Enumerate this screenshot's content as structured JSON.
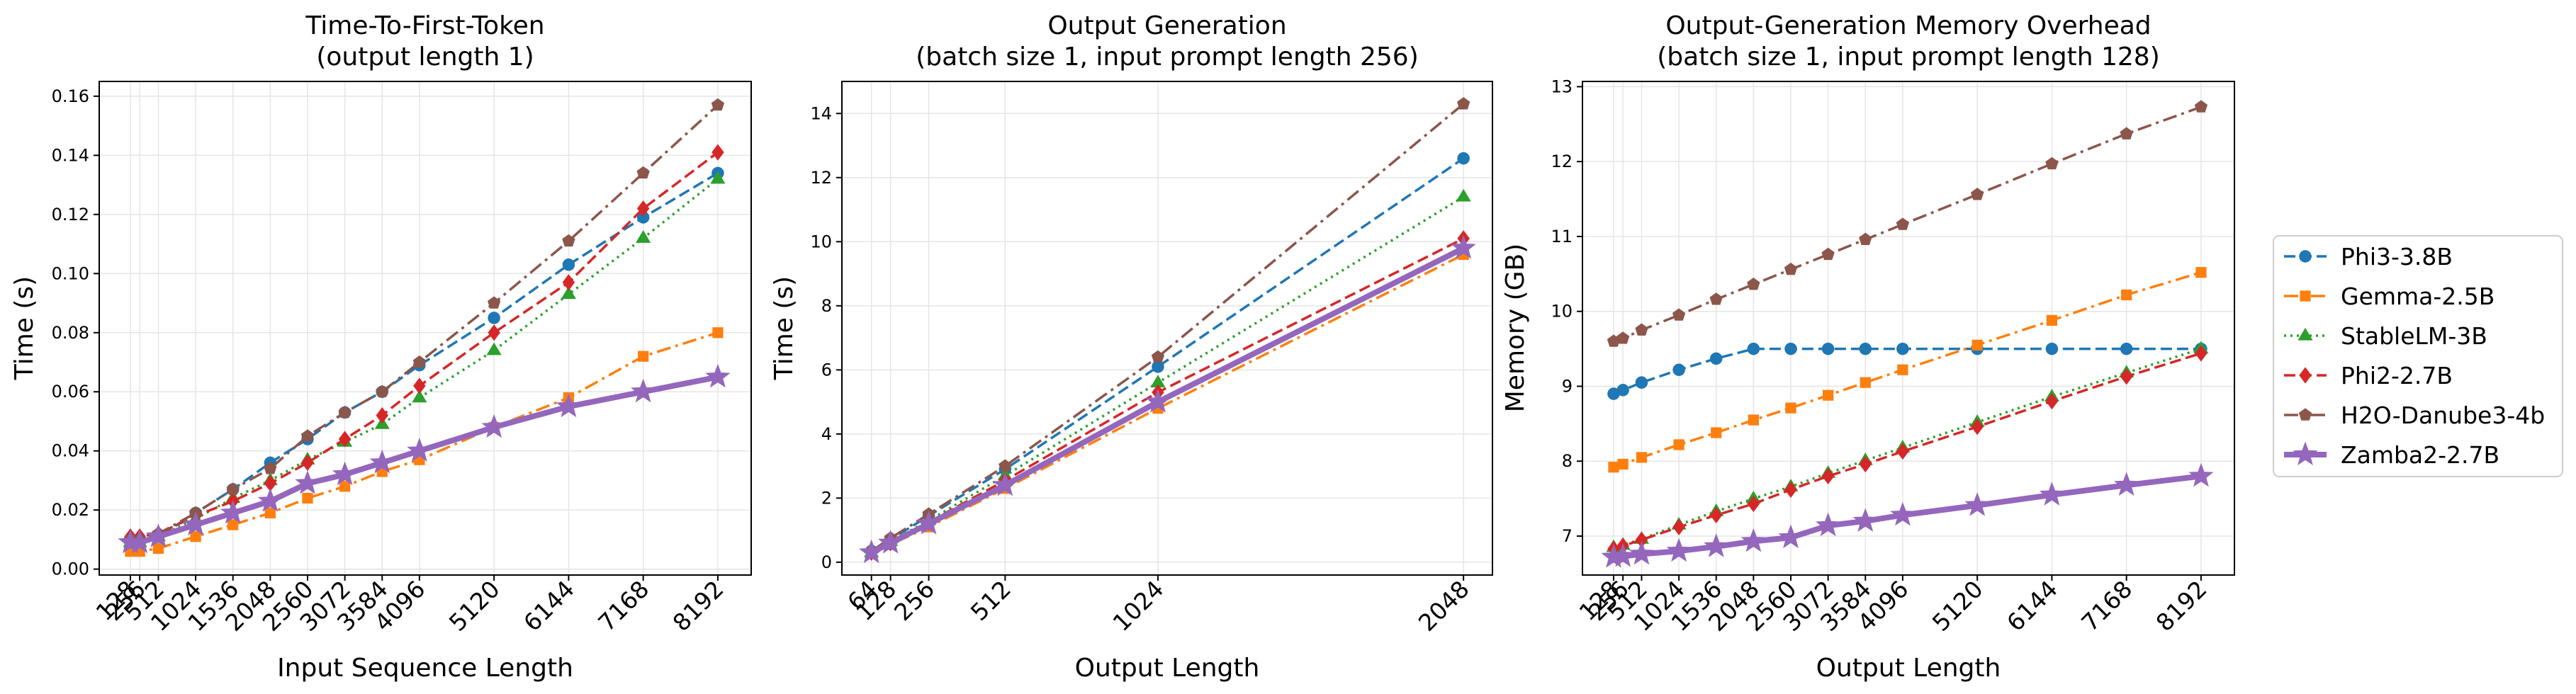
{
  "series_styles": {
    "Phi3-3.8B": {
      "color": "#1f77b4",
      "dash": "16,7",
      "marker": "circle",
      "width": 3.5
    },
    "Gemma-2.5B": {
      "color": "#ff7f0e",
      "dash": "20,7,4,7",
      "marker": "square",
      "width": 3.5
    },
    "StableLM-3B": {
      "color": "#2ca02c",
      "dash": "3,6",
      "marker": "triangle",
      "width": 3.5
    },
    "Phi2-2.7B": {
      "color": "#d62728",
      "dash": "16,7",
      "marker": "diamond",
      "width": 3.5
    },
    "H2O-Danube3-4b": {
      "color": "#8c564b",
      "dash": "20,7,4,7",
      "marker": "pentagon",
      "width": 3.5
    },
    "Zamba2-2.7B": {
      "color": "#9467bd",
      "dash": "",
      "marker": "star",
      "width": 8
    }
  },
  "legend": [
    "Phi3-3.8B",
    "Gemma-2.5B",
    "StableLM-3B",
    "Phi2-2.7B",
    "H2O-Danube3-4b",
    "Zamba2-2.7B"
  ],
  "chart_data": [
    {
      "type": "line",
      "title": [
        "Time-To-First-Token",
        "(output length 1)"
      ],
      "xlabel": "Input Sequence Length",
      "ylabel": "Time (s)",
      "xlim": [
        -300,
        8650
      ],
      "ylim": [
        -0.002,
        0.165
      ],
      "x": [
        128,
        256,
        512,
        1024,
        1536,
        2048,
        2560,
        3072,
        3584,
        4096,
        5120,
        6144,
        7168,
        8192
      ],
      "xticks": [
        128,
        256,
        512,
        1024,
        1536,
        2048,
        2560,
        3072,
        3584,
        4096,
        5120,
        6144,
        7168,
        8192
      ],
      "yticks": [
        0.0,
        0.02,
        0.04,
        0.06,
        0.08,
        0.1,
        0.12,
        0.14,
        0.16
      ],
      "ytick_labels": [
        "0.00",
        "0.02",
        "0.04",
        "0.06",
        "0.08",
        "0.10",
        "0.12",
        "0.14",
        "0.16"
      ],
      "series": [
        {
          "name": "Phi3-3.8B",
          "values": [
            0.009,
            0.009,
            0.011,
            0.019,
            0.027,
            0.036,
            0.044,
            0.053,
            0.06,
            0.069,
            0.085,
            0.103,
            0.119,
            0.134
          ]
        },
        {
          "name": "Gemma-2.5B",
          "values": [
            0.006,
            0.006,
            0.007,
            0.011,
            0.015,
            0.019,
            0.024,
            0.028,
            0.033,
            0.037,
            0.048,
            0.058,
            0.072,
            0.08
          ]
        },
        {
          "name": "StableLM-3B",
          "values": [
            0.009,
            0.009,
            0.011,
            0.017,
            0.024,
            0.03,
            0.037,
            0.043,
            0.049,
            0.058,
            0.074,
            0.093,
            0.112,
            0.132
          ]
        },
        {
          "name": "Phi2-2.7B",
          "values": [
            0.011,
            0.011,
            0.012,
            0.018,
            0.023,
            0.029,
            0.036,
            0.044,
            0.052,
            0.062,
            0.08,
            0.097,
            0.122,
            0.141
          ]
        },
        {
          "name": "H2O-Danube3-4b",
          "values": [
            0.01,
            0.01,
            0.012,
            0.019,
            0.027,
            0.034,
            0.045,
            0.053,
            0.06,
            0.07,
            0.09,
            0.111,
            0.134,
            0.157
          ]
        },
        {
          "name": "Zamba2-2.7B",
          "values": [
            0.009,
            0.009,
            0.011,
            0.015,
            0.019,
            0.023,
            0.029,
            0.032,
            0.036,
            0.04,
            0.048,
            0.055,
            0.06,
            0.065
          ]
        }
      ]
    },
    {
      "type": "line",
      "title": [
        "Output Generation",
        "(batch size 1, input prompt length 256)"
      ],
      "xlabel": "Output Length",
      "ylabel": "Time (s)",
      "xlim": [
        -35,
        2145
      ],
      "ylim": [
        -0.4,
        15.0
      ],
      "x": [
        64,
        128,
        256,
        512,
        1024,
        2048
      ],
      "xticks": [
        64,
        128,
        256,
        512,
        1024,
        2048
      ],
      "yticks": [
        0,
        2,
        4,
        6,
        8,
        10,
        12,
        14
      ],
      "ytick_labels": [
        "0",
        "2",
        "4",
        "6",
        "8",
        "10",
        "12",
        "14"
      ],
      "series": [
        {
          "name": "Phi3-3.8B",
          "values": [
            0.35,
            0.7,
            1.45,
            2.9,
            6.1,
            12.6
          ]
        },
        {
          "name": "Gemma-2.5B",
          "values": [
            0.3,
            0.55,
            1.1,
            2.3,
            4.8,
            9.6
          ]
        },
        {
          "name": "StableLM-3B",
          "values": [
            0.3,
            0.65,
            1.3,
            2.7,
            5.6,
            11.4
          ]
        },
        {
          "name": "Phi2-2.7B",
          "values": [
            0.3,
            0.6,
            1.25,
            2.55,
            5.3,
            10.1
          ]
        },
        {
          "name": "H2O-Danube3-4b",
          "values": [
            0.35,
            0.75,
            1.5,
            3.0,
            6.4,
            14.3
          ]
        },
        {
          "name": "Zamba2-2.7B",
          "values": [
            0.3,
            0.6,
            1.2,
            2.4,
            5.0,
            9.8
          ]
        }
      ]
    },
    {
      "type": "line",
      "title": [
        "Output-Generation Memory Overhead",
        "(batch size 1, input prompt length 128)"
      ],
      "xlabel": "Output Length",
      "ylabel": "Memory (GB)",
      "xlim": [
        -300,
        8650
      ],
      "ylim": [
        6.48,
        13.07
      ],
      "x": [
        128,
        256,
        512,
        1024,
        1536,
        2048,
        2560,
        3072,
        3584,
        4096,
        5120,
        6144,
        7168,
        8192
      ],
      "xticks": [
        128,
        256,
        512,
        1024,
        1536,
        2048,
        2560,
        3072,
        3584,
        4096,
        5120,
        6144,
        7168,
        8192
      ],
      "yticks": [
        7,
        8,
        9,
        10,
        11,
        12,
        13
      ],
      "ytick_labels": [
        "7",
        "8",
        "9",
        "10",
        "11",
        "12",
        "13"
      ],
      "series": [
        {
          "name": "Phi3-3.8B",
          "values": [
            8.9,
            8.95,
            9.05,
            9.22,
            9.37,
            9.5,
            9.5,
            9.5,
            9.5,
            9.5,
            9.5,
            9.5,
            9.5,
            9.5
          ]
        },
        {
          "name": "Gemma-2.5B",
          "values": [
            7.92,
            7.96,
            8.05,
            8.22,
            8.38,
            8.55,
            8.71,
            8.88,
            9.05,
            9.22,
            9.55,
            9.88,
            10.22,
            10.52
          ]
        },
        {
          "name": "StableLM-3B",
          "values": [
            6.85,
            6.88,
            6.96,
            7.15,
            7.33,
            7.5,
            7.66,
            7.84,
            8.01,
            8.18,
            8.52,
            8.86,
            9.18,
            9.5
          ]
        },
        {
          "name": "Phi2-2.7B",
          "values": [
            6.83,
            6.87,
            6.95,
            7.12,
            7.28,
            7.43,
            7.62,
            7.8,
            7.96,
            8.13,
            8.46,
            8.8,
            9.13,
            9.44
          ]
        },
        {
          "name": "H2O-Danube3-4b",
          "values": [
            9.6,
            9.64,
            9.75,
            9.95,
            10.16,
            10.36,
            10.56,
            10.76,
            10.96,
            11.16,
            11.56,
            11.97,
            12.37,
            12.73
          ]
        },
        {
          "name": "Zamba2-2.7B",
          "values": [
            6.72,
            6.73,
            6.76,
            6.8,
            6.86,
            6.93,
            6.98,
            7.14,
            7.2,
            7.28,
            7.41,
            7.55,
            7.68,
            7.8
          ]
        }
      ]
    }
  ]
}
